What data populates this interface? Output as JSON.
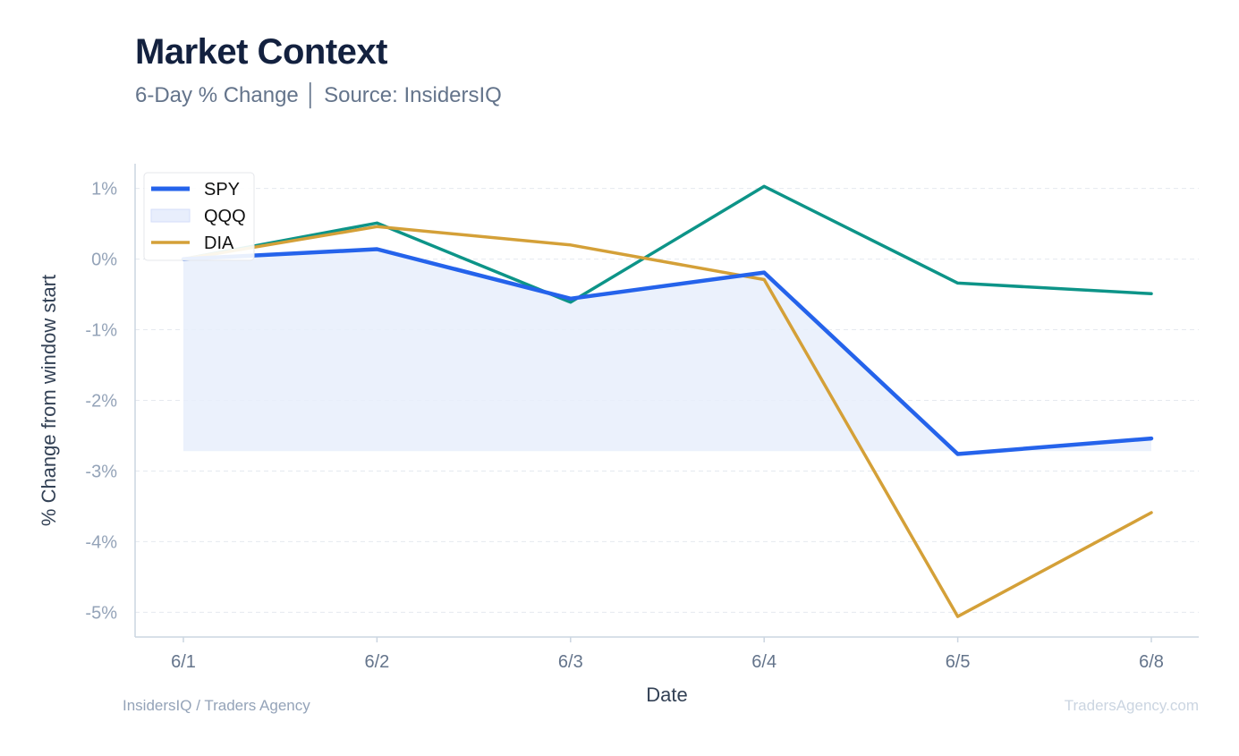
{
  "header": {
    "title": "Market Context",
    "subtitle": "6-Day % Change │ Source: InsidersIQ"
  },
  "footer": {
    "left": "InsidersIQ / Traders Agency",
    "right": "TradersAgency.com"
  },
  "chart_data": {
    "type": "line",
    "xlabel": "Date",
    "ylabel": "% Change from window start",
    "categories": [
      "6/1",
      "6/2",
      "6/3",
      "6/4",
      "6/5",
      "6/8"
    ],
    "ylim": [
      -5.35,
      1.35
    ],
    "yticks": [
      1,
      0,
      -1,
      -2,
      -3,
      -4,
      -5
    ],
    "ytick_labels": [
      "1%",
      "0%",
      "-1%",
      "-2%",
      "-3%",
      "-4%",
      "-5%"
    ],
    "grid": "horizontal dashed",
    "legend_position": "top-left",
    "series": [
      {
        "name": "SPY",
        "color": "#2563eb",
        "style": "line",
        "values": [
          0,
          0.14,
          -0.56,
          -0.19,
          -2.76,
          -2.54
        ]
      },
      {
        "name": "QQQ",
        "color": "#0d9488",
        "style": "line",
        "legend_swatch": "band",
        "band_color": "#e8eefc",
        "band_floor": -2.72,
        "values": [
          0,
          0.51,
          -0.61,
          1.03,
          -0.34,
          -0.49
        ]
      },
      {
        "name": "DIA",
        "color": "#d4a038",
        "style": "line",
        "values": [
          0,
          0.46,
          0.2,
          -0.29,
          -5.06,
          -3.59
        ]
      }
    ]
  }
}
